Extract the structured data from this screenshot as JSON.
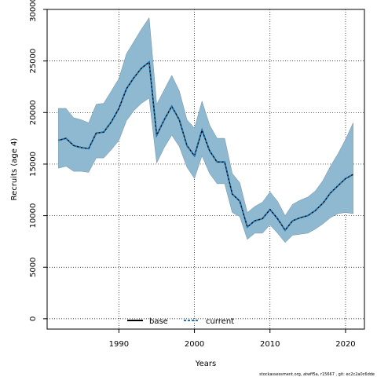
{
  "chart_data": {
    "type": "line",
    "xlabel": "Years",
    "ylabel": "Recruits (age 4)",
    "xlim": [
      1980.5,
      2022.5
    ],
    "ylim": [
      -1000,
      30000
    ],
    "xticks": [
      1990,
      2000,
      2010,
      2020
    ],
    "yticks": [
      0,
      5000,
      10000,
      15000,
      20000,
      25000,
      30000
    ],
    "grid": true,
    "legend_position": "bottom-center",
    "ci_band_color": "#8fb9d0",
    "x": [
      1982,
      1983,
      1984,
      1985,
      1986,
      1987,
      1988,
      1989,
      1990,
      1991,
      1992,
      1993,
      1994,
      1995,
      1996,
      1997,
      1998,
      1999,
      2000,
      2001,
      2002,
      2003,
      2004,
      2005,
      2006,
      2007,
      2008,
      2009,
      2010,
      2011,
      2012,
      2013,
      2014,
      2015,
      2016,
      2017,
      2018,
      2019,
      2020,
      2021
    ],
    "ci_upper": [
      20400,
      20400,
      19500,
      19300,
      19000,
      20800,
      20900,
      22100,
      23300,
      25700,
      26900,
      28100,
      29200,
      20800,
      22200,
      23600,
      22100,
      19300,
      18500,
      21100,
      18800,
      17500,
      17500,
      14100,
      13200,
      10300,
      10900,
      11300,
      12300,
      11400,
      10000,
      11100,
      11500,
      11800,
      12400,
      13400,
      14800,
      16000,
      17400,
      19000
    ],
    "ci_lower": [
      14600,
      14800,
      14300,
      14300,
      14200,
      15600,
      15600,
      16400,
      17300,
      19200,
      20200,
      20900,
      21400,
      15100,
      16600,
      17800,
      16700,
      14700,
      13600,
      15800,
      14100,
      13100,
      13100,
      10300,
      9900,
      7700,
      8300,
      8300,
      9100,
      8300,
      7400,
      8100,
      8200,
      8300,
      8700,
      9200,
      9800,
      10200,
      10300,
      10200
    ],
    "series": [
      {
        "name": "base",
        "color": "#000000",
        "style": "solid",
        "values": [
          17300,
          17500,
          16800,
          16600,
          16500,
          18000,
          18100,
          19100,
          20400,
          22300,
          23400,
          24300,
          24900,
          17800,
          19300,
          20600,
          19300,
          16800,
          15800,
          18300,
          16300,
          15200,
          15200,
          12100,
          11400,
          8900,
          9500,
          9700,
          10600,
          9700,
          8600,
          9500,
          9800,
          10000,
          10500,
          11200,
          12200,
          12900,
          13600,
          14000
        ]
      },
      {
        "name": "current",
        "color": "#1f77b4",
        "style": "dashed",
        "values": [
          17300,
          17500,
          16800,
          16600,
          16500,
          18000,
          18100,
          19100,
          20400,
          22300,
          23400,
          24300,
          24900,
          17800,
          19300,
          20600,
          19300,
          16800,
          15800,
          18300,
          16300,
          15200,
          15200,
          12100,
          11400,
          8900,
          9500,
          9700,
          10600,
          9700,
          8600,
          9500,
          9800,
          10000,
          10500,
          11200,
          12200,
          12900,
          13600,
          14000
        ]
      }
    ]
  },
  "footer": "stockassessment.org, atwff5a, r15667 , git: ec2c2a0c6dde"
}
